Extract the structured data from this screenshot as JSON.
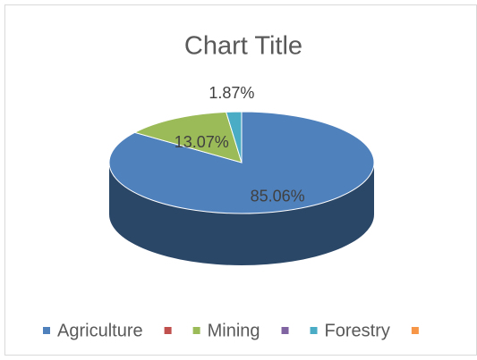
{
  "chart_data": {
    "type": "pie3d",
    "title": "Chart Title",
    "categories": [
      "Agriculture",
      null,
      "Mining",
      null,
      "Forestry",
      null
    ],
    "values": [
      85.06,
      0,
      13.07,
      0,
      1.87,
      0
    ],
    "value_labels": [
      "85.06%",
      null,
      "13.07%",
      null,
      "1.87%",
      null
    ],
    "colors": [
      "#4f81bd",
      "#c0504d",
      "#9bbb59",
      "#8064a2",
      "#4bacc6",
      "#f79646"
    ],
    "legend": "bottom"
  }
}
